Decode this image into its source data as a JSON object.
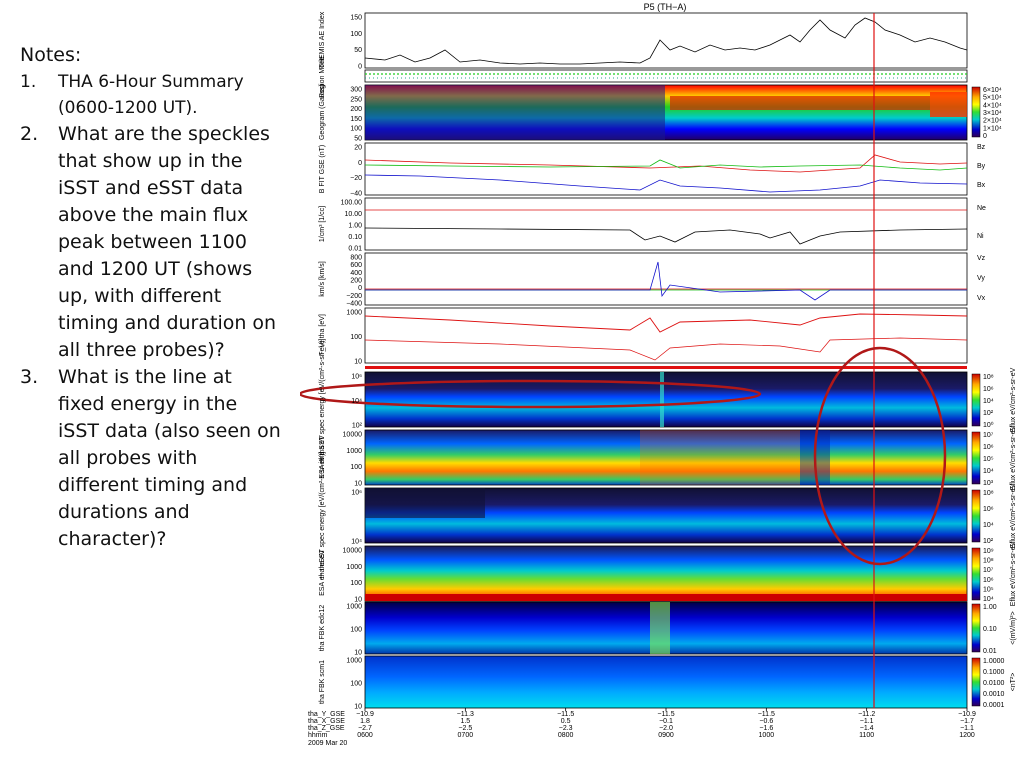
{
  "notes": {
    "heading": "Notes:",
    "items": [
      {
        "num": "1.",
        "text": "THA 6-Hour Summary (0600-1200 UT)."
      },
      {
        "num": "2.",
        "text": "What are the speckles that show up in the iSST and eSST data above the main flux peak between 1100 and 1200 UT (shows up, with different timing and duration on all three probes)?"
      },
      {
        "num": "3.",
        "text": "What is the line at fixed energy in the iSST data (also seen on all probes with different timing and durations and character)?"
      }
    ]
  },
  "plot": {
    "title": "P5  (TH−A)",
    "panels": [
      {
        "label": "THEMIS AE Index",
        "ticks": [
          "150",
          "100",
          "50",
          "0"
        ]
      },
      {
        "label": "Region Mode",
        "ticks": []
      },
      {
        "label": "Geogram (Gauss)",
        "ticks": [
          "300",
          "250",
          "200",
          "150",
          "100",
          "50"
        ]
      },
      {
        "label": "B FIT GSE (nT)",
        "ticks": [
          "20",
          "0",
          "−20",
          "−40"
        ]
      },
      {
        "label": "1/cm³ [1/cc]",
        "ticks": [
          "100.00",
          "10.00",
          "1.00",
          "0.10",
          "0.01"
        ]
      },
      {
        "label": "km/s [km/s]",
        "ticks": [
          "800",
          "600",
          "400",
          "200",
          "0",
          "−200",
          "−400"
        ]
      },
      {
        "label": "T_i,e tha [eV]",
        "ticks": [
          "1000",
          "100",
          "10"
        ]
      },
      {
        "label": "tha SST spec energy [eV/(cm²-s-sr-eV)]",
        "ticks": [
          "10⁶",
          "10⁴",
          "10²"
        ]
      },
      {
        "label": "ESA i+ tha eV",
        "ticks": [
          "10000",
          "1000",
          "100",
          "10"
        ]
      },
      {
        "label": "tha eSST spec energy [eV/(cm²-s-sr-eV)]",
        "ticks": [
          "10⁶",
          "10⁴"
        ]
      },
      {
        "label": "ESA e− tha eV",
        "ticks": [
          "10000",
          "1000",
          "100",
          "10"
        ]
      },
      {
        "label": "tha FBK edc12",
        "ticks": [
          "1000",
          "100",
          "10"
        ]
      },
      {
        "label": "tha FBK scm1",
        "ticks": [
          "1000",
          "100",
          "10"
        ]
      }
    ],
    "legends": {
      "bfield": [
        "Bz",
        "By",
        "Bx"
      ],
      "density": [
        "Ne",
        "Ni"
      ],
      "velocity": [
        "Vz",
        "Vy",
        "Vx"
      ]
    },
    "colorbars": [
      {
        "ticks": [
          "6×10⁴",
          "5×10⁴",
          "4×10⁴",
          "3×10⁴",
          "2×10⁴",
          "1×10⁴",
          "0"
        ],
        "unit": ""
      },
      {
        "ticks": [
          "10⁸",
          "10⁶",
          "10⁴",
          "10²",
          "10⁰"
        ],
        "unit": "Eflux eV/cm²-s-sr-eV"
      },
      {
        "ticks": [
          "10⁷",
          "10⁶",
          "10⁵",
          "10⁴",
          "10³"
        ],
        "unit": "Eflux eV/cm²-s-sr-eV"
      },
      {
        "ticks": [
          "10⁸",
          "10⁶",
          "10⁴",
          "10²"
        ],
        "unit": "Eflux eV/cm²-s-sr-eV"
      },
      {
        "ticks": [
          "10⁹",
          "10⁸",
          "10⁷",
          "10⁶",
          "10⁵",
          "10⁴"
        ],
        "unit": "Eflux eV/cm²-s-sr-eV"
      },
      {
        "ticks": [
          "1.00",
          "0.10",
          "0.01"
        ],
        "unit": "<(mV/m)²>"
      },
      {
        "ticks": [
          "1.0000",
          "0.1000",
          "0.0100",
          "0.0010",
          "0.0001"
        ],
        "unit": "<nT²>"
      }
    ],
    "xaxis": {
      "row_labels": [
        "tha_Y_GSE",
        "tha_X_GSE",
        "tha_Z_GSE",
        "hhmm",
        "2009 Mar 20"
      ],
      "columns": [
        {
          "y": "−10.9",
          "x": "1.8",
          "z": "−2.7",
          "t": "0600"
        },
        {
          "y": "−11.3",
          "x": "1.5",
          "z": "−2.5",
          "t": "0700"
        },
        {
          "y": "−11.5",
          "x": "0.5",
          "z": "−2.3",
          "t": "0800"
        },
        {
          "y": "−11.5",
          "x": "−0.1",
          "z": "−2.0",
          "t": "0900"
        },
        {
          "y": "−11.5",
          "x": "−0.6",
          "z": "−1.6",
          "t": "1000"
        },
        {
          "y": "−11.2",
          "x": "−1.1",
          "z": "−1.4",
          "t": "1100"
        },
        {
          "y": "−10.9",
          "x": "−1.7",
          "z": "−1.1",
          "t": "1200"
        }
      ]
    },
    "colors": {
      "annotation": "#b01818",
      "red_line": "#e01010",
      "bz": "#dd1111",
      "by": "#11bb11",
      "bx": "#1111cc"
    }
  }
}
